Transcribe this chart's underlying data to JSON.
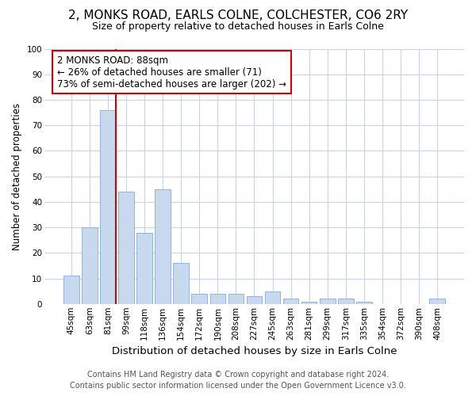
{
  "title": "2, MONKS ROAD, EARLS COLNE, COLCHESTER, CO6 2RY",
  "subtitle": "Size of property relative to detached houses in Earls Colne",
  "xlabel": "Distribution of detached houses by size in Earls Colne",
  "ylabel": "Number of detached properties",
  "categories": [
    "45sqm",
    "63sqm",
    "81sqm",
    "99sqm",
    "118sqm",
    "136sqm",
    "154sqm",
    "172sqm",
    "190sqm",
    "208sqm",
    "227sqm",
    "245sqm",
    "263sqm",
    "281sqm",
    "299sqm",
    "317sqm",
    "335sqm",
    "354sqm",
    "372sqm",
    "390sqm",
    "408sqm"
  ],
  "values": [
    11,
    30,
    76,
    44,
    28,
    45,
    16,
    4,
    4,
    4,
    3,
    5,
    2,
    1,
    2,
    2,
    1,
    0,
    0,
    0,
    2
  ],
  "bar_color": "#c8d8ef",
  "bar_edge_color": "#8fb4db",
  "highlight_line_index": 2,
  "annotation_line1": "2 MONKS ROAD: 88sqm",
  "annotation_line2": "← 26% of detached houses are smaller (71)",
  "annotation_line3": "73% of semi-detached houses are larger (202) →",
  "annotation_box_color": "#ffffff",
  "annotation_box_edge": "#cc0000",
  "red_line_color": "#cc0000",
  "ylim": [
    0,
    100
  ],
  "yticks": [
    0,
    10,
    20,
    30,
    40,
    50,
    60,
    70,
    80,
    90,
    100
  ],
  "footer_line1": "Contains HM Land Registry data © Crown copyright and database right 2024.",
  "footer_line2": "Contains public sector information licensed under the Open Government Licence v3.0.",
  "bg_color": "#ffffff",
  "plot_bg_color": "#ffffff",
  "grid_color": "#c8d4e8",
  "title_fontsize": 11,
  "subtitle_fontsize": 9,
  "ylabel_fontsize": 8.5,
  "xlabel_fontsize": 9.5,
  "tick_fontsize": 7.5,
  "annotation_fontsize": 8.5,
  "footer_fontsize": 7
}
